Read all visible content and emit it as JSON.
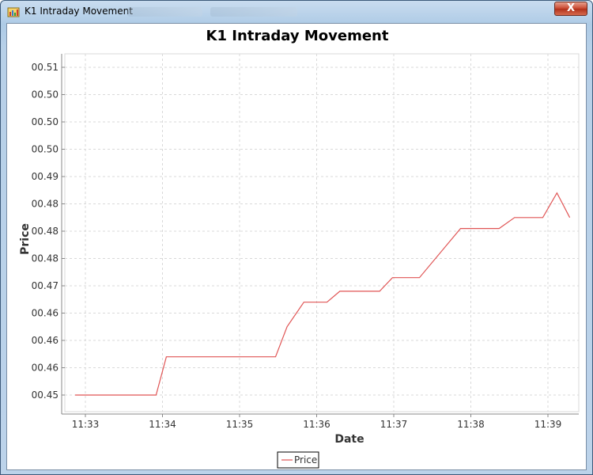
{
  "window": {
    "title": "K1 Intraday Movement",
    "close_label": "X",
    "close_color": "#c8452d"
  },
  "chart_data": {
    "type": "line",
    "title": "K1 Intraday Movement",
    "xlabel": "Date",
    "ylabel": "Price",
    "x_ticks": [
      "11:33",
      "11:34",
      "11:35",
      "11:36",
      "11:37",
      "11:38",
      "11:39"
    ],
    "y_ticks": [
      "00.45",
      "00.46",
      "00.46",
      "00.46",
      "00.47",
      "00.48",
      "00.48",
      "00.48",
      "00.49",
      "00.50",
      "00.50",
      "00.50",
      "00.51"
    ],
    "grid": true,
    "legend_position": "bottom-center",
    "series": [
      {
        "name": "Price",
        "color": "#e05555",
        "x": [
          "11:32:52",
          "11:33:55",
          "11:34:03",
          "11:35:28",
          "11:35:37",
          "11:35:50",
          "11:36:08",
          "11:36:18",
          "11:36:49",
          "11:36:59",
          "11:37:20",
          "11:37:52",
          "11:38:22",
          "11:38:34",
          "11:38:56",
          "11:39:07",
          "11:39:17"
        ],
        "y": [
          0.45,
          0.45,
          0.457,
          0.457,
          0.4625,
          0.467,
          0.467,
          0.469,
          0.469,
          0.4715,
          0.4715,
          0.4805,
          0.4805,
          0.4825,
          0.4825,
          0.487,
          0.4825
        ]
      }
    ],
    "legend": [
      "Price"
    ]
  }
}
